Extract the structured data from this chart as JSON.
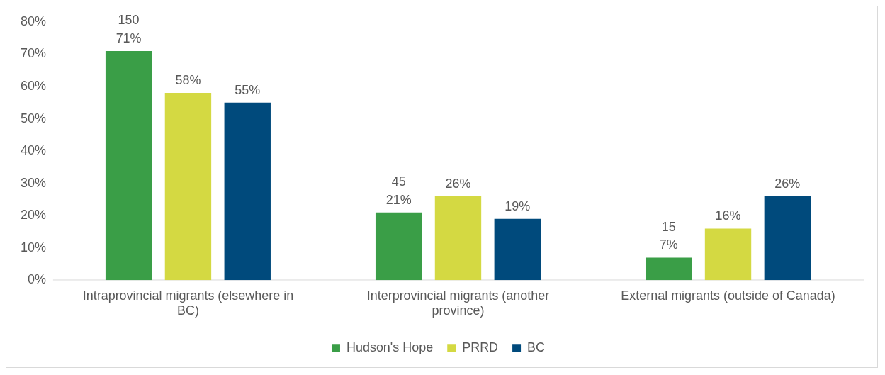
{
  "chart_data": {
    "type": "bar",
    "categories": [
      "Intraprovincial migrants (elsewhere in BC)",
      "Interprovincial migrants (another province)",
      "External migrants (outside of Canada)"
    ],
    "series": [
      {
        "name": "Hudson's Hope",
        "color": "#3a9e47",
        "values": [
          71,
          21,
          7
        ],
        "value_labels": [
          "150\n71%",
          "45\n21%",
          "15\n7%"
        ]
      },
      {
        "name": "PRRD",
        "color": "#d4d942",
        "values": [
          58,
          26,
          16
        ],
        "value_labels": [
          "58%",
          "26%",
          "16%"
        ]
      },
      {
        "name": "BC",
        "color": "#004a7c",
        "values": [
          55,
          19,
          26
        ],
        "value_labels": [
          "55%",
          "19%",
          "26%"
        ]
      }
    ],
    "ylim": [
      0,
      80
    ],
    "yticks": [
      {
        "value": 0,
        "label": "0%"
      },
      {
        "value": 10,
        "label": "10%"
      },
      {
        "value": 20,
        "label": "20%"
      },
      {
        "value": 30,
        "label": "30%"
      },
      {
        "value": 40,
        "label": "40%"
      },
      {
        "value": 50,
        "label": "50%"
      },
      {
        "value": 60,
        "label": "60%"
      },
      {
        "value": 70,
        "label": "70%"
      },
      {
        "value": 80,
        "label": "80%"
      }
    ],
    "grid": false,
    "legend": "bottom"
  }
}
